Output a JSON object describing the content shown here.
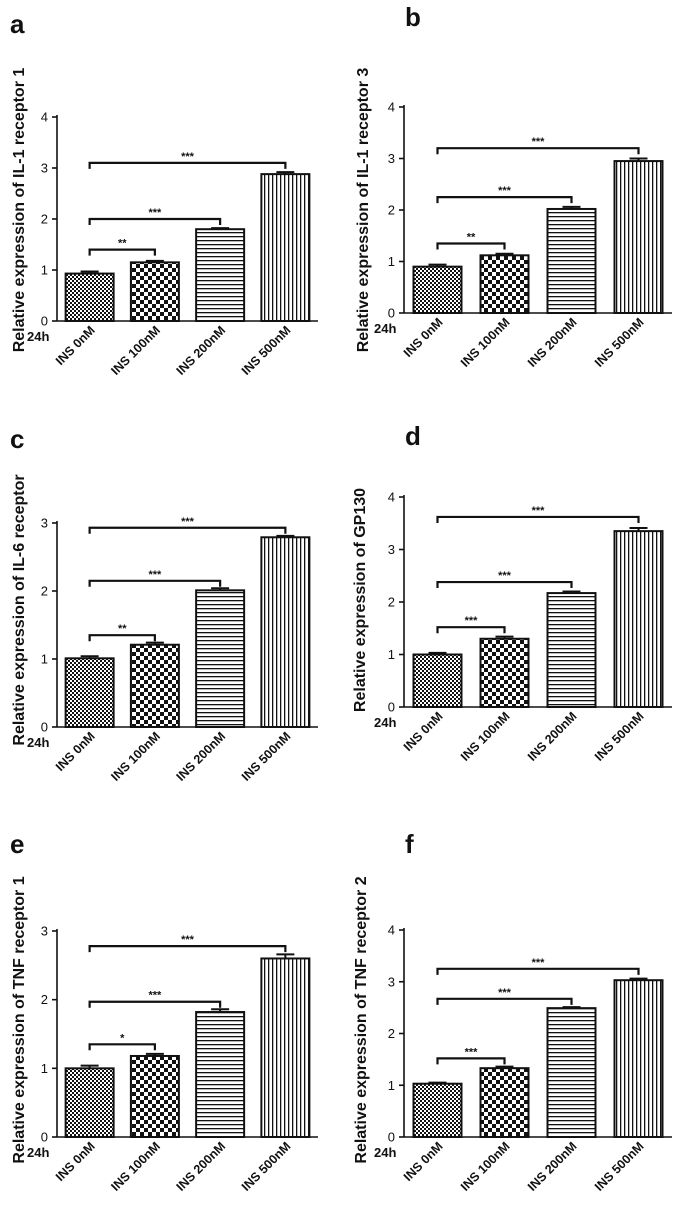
{
  "figure": {
    "time_label": "24h",
    "categories": [
      "INS 0nM",
      "INS 100nM",
      "INS 200nM",
      "INS 500nM"
    ]
  },
  "chart_data": [
    {
      "panel": "a",
      "type": "bar",
      "ylabel": "Relative expression of IL-1 receptor 1",
      "categories": [
        "INS 0nM",
        "INS 100nM",
        "INS 200nM",
        "INS 500nM"
      ],
      "values": [
        0.93,
        1.15,
        1.8,
        2.88
      ],
      "errors": [
        0.04,
        0.03,
        0.02,
        0.04
      ],
      "ylim": [
        0,
        4
      ],
      "yticks": [
        0,
        1,
        2,
        3,
        4
      ],
      "comparisons": [
        {
          "from": 0,
          "to": 1,
          "label": "**",
          "y": 1.4
        },
        {
          "from": 0,
          "to": 2,
          "label": "***",
          "y": 2.0
        },
        {
          "from": 0,
          "to": 3,
          "label": "***",
          "y": 3.1
        }
      ]
    },
    {
      "panel": "b",
      "type": "bar",
      "ylabel": "Relative expression of IL-1 receptor 3",
      "categories": [
        "INS 0nM",
        "INS 100nM",
        "INS 200nM",
        "INS 500nM"
      ],
      "values": [
        0.9,
        1.12,
        2.02,
        2.95
      ],
      "errors": [
        0.04,
        0.03,
        0.04,
        0.05
      ],
      "ylim": [
        0,
        4
      ],
      "yticks": [
        0,
        1,
        2,
        3,
        4
      ],
      "comparisons": [
        {
          "from": 0,
          "to": 1,
          "label": "**",
          "y": 1.35
        },
        {
          "from": 0,
          "to": 2,
          "label": "***",
          "y": 2.25
        },
        {
          "from": 0,
          "to": 3,
          "label": "***",
          "y": 3.2
        }
      ]
    },
    {
      "panel": "c",
      "type": "bar",
      "ylabel": "Relative expression of IL-6 receptor",
      "categories": [
        "INS 0nM",
        "INS 100nM",
        "INS 200nM",
        "INS 500nM"
      ],
      "values": [
        1.01,
        1.21,
        2.01,
        2.79
      ],
      "errors": [
        0.03,
        0.03,
        0.03,
        0.02
      ],
      "ylim": [
        0,
        3
      ],
      "yticks": [
        0,
        1,
        2,
        3
      ],
      "comparisons": [
        {
          "from": 0,
          "to": 1,
          "label": "**",
          "y": 1.35
        },
        {
          "from": 0,
          "to": 2,
          "label": "***",
          "y": 2.15
        },
        {
          "from": 0,
          "to": 3,
          "label": "***",
          "y": 2.93
        }
      ]
    },
    {
      "panel": "d",
      "type": "bar",
      "ylabel": "Relative expression of GP130",
      "categories": [
        "INS 0nM",
        "INS 100nM",
        "INS 200nM",
        "INS 500nM"
      ],
      "values": [
        1.0,
        1.3,
        2.17,
        3.35
      ],
      "errors": [
        0.03,
        0.04,
        0.03,
        0.06
      ],
      "ylim": [
        0,
        4
      ],
      "yticks": [
        0,
        1,
        2,
        3,
        4
      ],
      "comparisons": [
        {
          "from": 0,
          "to": 1,
          "label": "***",
          "y": 1.52
        },
        {
          "from": 0,
          "to": 2,
          "label": "***",
          "y": 2.38
        },
        {
          "from": 0,
          "to": 3,
          "label": "***",
          "y": 3.62
        }
      ]
    },
    {
      "panel": "e",
      "type": "bar",
      "ylabel": "Relative expression of TNF receptor 1",
      "categories": [
        "INS 0nM",
        "INS 100nM",
        "INS 200nM",
        "INS 500nM"
      ],
      "values": [
        1.0,
        1.18,
        1.82,
        2.6
      ],
      "errors": [
        0.04,
        0.03,
        0.04,
        0.06
      ],
      "ylim": [
        0,
        3
      ],
      "yticks": [
        0,
        1,
        2,
        3
      ],
      "comparisons": [
        {
          "from": 0,
          "to": 1,
          "label": "*",
          "y": 1.35
        },
        {
          "from": 0,
          "to": 2,
          "label": "***",
          "y": 1.97
        },
        {
          "from": 0,
          "to": 3,
          "label": "***",
          "y": 2.78
        }
      ]
    },
    {
      "panel": "f",
      "type": "bar",
      "ylabel": "Relative expression of TNF receptor 2",
      "categories": [
        "INS 0nM",
        "INS 100nM",
        "INS 200nM",
        "INS 500nM"
      ],
      "values": [
        1.03,
        1.33,
        2.49,
        3.03
      ],
      "errors": [
        0.02,
        0.03,
        0.02,
        0.03
      ],
      "ylim": [
        0,
        4
      ],
      "yticks": [
        0,
        1,
        2,
        3,
        4
      ],
      "comparisons": [
        {
          "from": 0,
          "to": 1,
          "label": "***",
          "y": 1.52
        },
        {
          "from": 0,
          "to": 2,
          "label": "***",
          "y": 2.67
        },
        {
          "from": 0,
          "to": 3,
          "label": "***",
          "y": 3.25
        }
      ]
    }
  ]
}
